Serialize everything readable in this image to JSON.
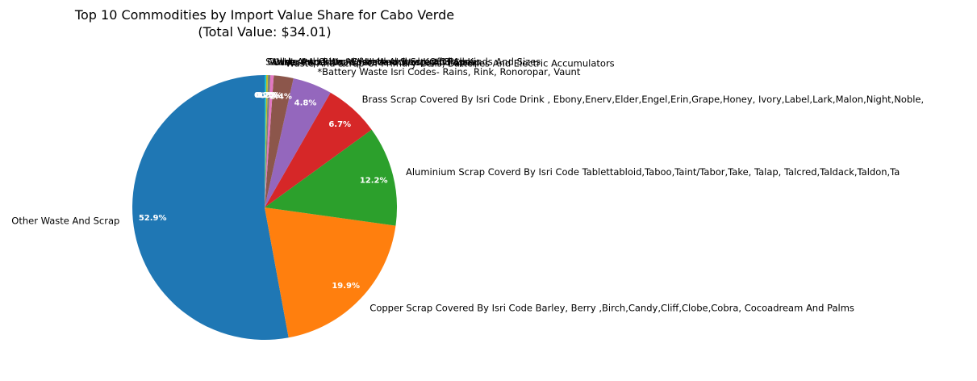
{
  "chart_data": {
    "type": "pie",
    "title": "Top 10 Commodities by Import Value Share for Cabo Verde",
    "subtitle": "(Total Value: $34.01)",
    "slices": [
      {
        "label": "Other Waste And Scrap",
        "value": 52.9,
        "pct_label": "52.9%",
        "color": "#1f77b4"
      },
      {
        "label": "Copper Scrap Covered By Isri Code Barley, Berry ,Birch,Candy,Cliff,Clobe,Cobra, Cocoadream And Palms",
        "value": 19.9,
        "pct_label": "19.9%",
        "color": "#ff7f0e"
      },
      {
        "label": "Aluminium Scrap Coverd By Isri Code Tablettabloid,Taboo,Taint/Tabor,Take, Talap, Talcred,Taldack,Taldon,Ta",
        "value": 12.2,
        "pct_label": "12.2%",
        "color": "#2ca02c"
      },
      {
        "label": "Brass Scrap Covered By Isri Code Drink , Ebony,Enerv,Elder,Engel,Erin,Grape,Honey, Ivory,Label,Lark,Malon,Night,Noble,",
        "value": 6.7,
        "pct_label": "6.7%",
        "color": "#d62728"
      },
      {
        "label": "*Battery Waste Isri Codes- Rains, Rink, Ronoropar, Vaunt",
        "value": 4.8,
        "pct_label": "4.8%",
        "color": "#9467bd"
      },
      {
        "label": "Waste And Scrap Of Primary Cells, Batteries And Electric Accumulators",
        "value": 2.4,
        "pct_label": "2.4%",
        "color": "#8c564b"
      },
      {
        "label": "Other Paper Or Paperboard Waste And Scrap",
        "value": 0.4,
        "pct_label": "0.4%",
        "color": "#e377c2"
      },
      {
        "label": "Waste And Scrap Of Unbleached Kraft Paper",
        "value": 0.3,
        "pct_label": "0.3%",
        "color": "#7f7f7f"
      },
      {
        "label": "Cullet And Other Waste And Scrap Of Glass",
        "value": 0.2,
        "pct_label": "0.2%",
        "color": "#bcbd22"
      },
      {
        "label": "Sawdust And Wood Waste And Scrap Of All Kinds And Sizes",
        "value": 0.2,
        "pct_label": "0.2%",
        "color": "#17becf"
      }
    ]
  }
}
